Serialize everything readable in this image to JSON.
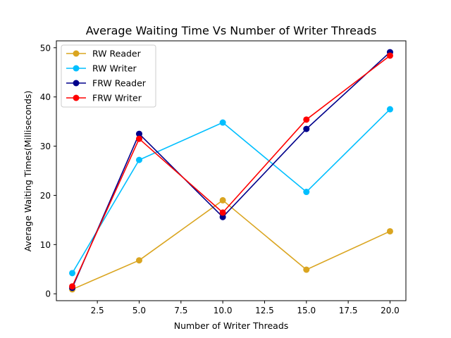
{
  "chart_data": {
    "type": "line",
    "title": "Average Waiting Time Vs Number of Writer Threads",
    "xlabel": "Number of Writer Threads",
    "ylabel": "Average Waiting Times(Milliseconds)",
    "xlim": [
      0.05,
      20.95
    ],
    "ylim": [
      -1.4,
      51.4
    ],
    "xticks": [
      2.5,
      5.0,
      7.5,
      10.0,
      12.5,
      15.0,
      17.5,
      20.0
    ],
    "xtick_labels": [
      "2.5",
      "5.0",
      "7.5",
      "10.0",
      "12.5",
      "15.0",
      "17.5",
      "20.0"
    ],
    "yticks": [
      0,
      10,
      20,
      30,
      40,
      50
    ],
    "ytick_labels": [
      "0",
      "10",
      "20",
      "30",
      "40",
      "50"
    ],
    "grid": false,
    "legend_position": "top-left",
    "x": [
      1,
      5,
      10,
      15,
      20
    ],
    "series": [
      {
        "name": "RW Reader",
        "color": "#DAA520",
        "values": [
          0.9,
          6.8,
          19.0,
          4.9,
          12.7
        ]
      },
      {
        "name": "RW Writer",
        "color": "#00BFFF",
        "values": [
          4.2,
          27.2,
          34.8,
          20.7,
          37.5
        ]
      },
      {
        "name": "FRW Reader",
        "color": "#00008B",
        "values": [
          1.2,
          32.5,
          15.6,
          33.5,
          49.1
        ]
      },
      {
        "name": "FRW Writer",
        "color": "#FF0000",
        "values": [
          1.5,
          31.5,
          16.5,
          35.4,
          48.4
        ]
      }
    ]
  }
}
